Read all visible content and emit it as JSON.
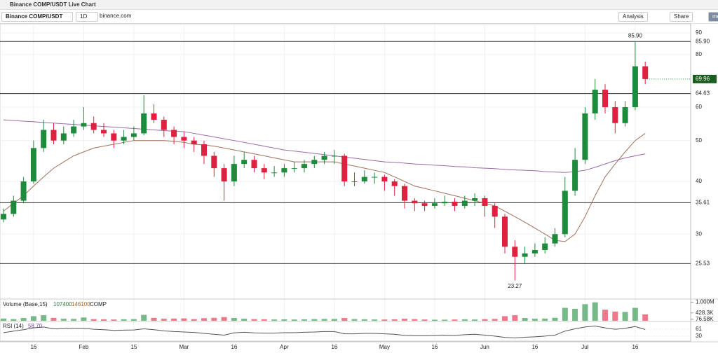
{
  "ui": {
    "tab_title": "Binance COMP/USDT Live Chart",
    "symbol": "Binance COMP/USDT",
    "interval": "1D",
    "source": "binance.com",
    "analysis": "Analysis",
    "share": "Share",
    "user": "me"
  },
  "chart_data": {
    "type": "candlestick",
    "log_scale": true,
    "grid": true,
    "up_color": "#1e8a3c",
    "down_color": "#e0203f",
    "categories": [
      null,
      null,
      null,
      "16",
      null,
      null,
      null,
      null,
      "Feb",
      null,
      null,
      null,
      null,
      "15",
      null,
      null,
      null,
      null,
      "Mar",
      null,
      null,
      null,
      null,
      "16",
      null,
      null,
      null,
      null,
      "Apr",
      null,
      null,
      null,
      null,
      "16",
      null,
      null,
      null,
      null,
      "May",
      null,
      null,
      null,
      null,
      "16",
      null,
      null,
      null,
      null,
      "Jun",
      null,
      null,
      null,
      null,
      "16",
      null,
      null,
      null,
      null,
      "Jul",
      null,
      null,
      null,
      null,
      "16",
      null
    ],
    "candles": [
      [
        32.5,
        34.5,
        32,
        33.5
      ],
      [
        33.5,
        37,
        33,
        36
      ],
      [
        36,
        41,
        35.5,
        40
      ],
      [
        40,
        50,
        39.5,
        48
      ],
      [
        48,
        56,
        47,
        53
      ],
      [
        53,
        55,
        49,
        50
      ],
      [
        50,
        54,
        49,
        52
      ],
      [
        52,
        56,
        51,
        54
      ],
      [
        54,
        60,
        53,
        55
      ],
      [
        55,
        57,
        52,
        53
      ],
      [
        53,
        55,
        51,
        52
      ],
      [
        52,
        53,
        48,
        50
      ],
      [
        50,
        53,
        49,
        51
      ],
      [
        51,
        54,
        50,
        52
      ],
      [
        52,
        64,
        51.5,
        58
      ],
      [
        58,
        61,
        55,
        56
      ],
      [
        56,
        57,
        51,
        53
      ],
      [
        53,
        54,
        49,
        51
      ],
      [
        51,
        52.5,
        48,
        50
      ],
      [
        50,
        51,
        47,
        49
      ],
      [
        49,
        50,
        44,
        46
      ],
      [
        46,
        47,
        41,
        43
      ],
      [
        43,
        44,
        36,
        40
      ],
      [
        40,
        46,
        39,
        44
      ],
      [
        44,
        47,
        43,
        45
      ],
      [
        45,
        46,
        42,
        43
      ],
      [
        43,
        44,
        40.5,
        42
      ],
      [
        42,
        43.5,
        41,
        42
      ],
      [
        42,
        44,
        41,
        43
      ],
      [
        43,
        44.5,
        42,
        43
      ],
      [
        43,
        45,
        42,
        44
      ],
      [
        44,
        46,
        43,
        45
      ],
      [
        45,
        47,
        44,
        46
      ],
      [
        46,
        47.5,
        44,
        46
      ],
      [
        46,
        46.5,
        39,
        40
      ],
      [
        40,
        42,
        39,
        40
      ],
      [
        40,
        42.5,
        39.5,
        41
      ],
      [
        41,
        42,
        39.5,
        41
      ],
      [
        41,
        41.5,
        38,
        40
      ],
      [
        40,
        40.5,
        37,
        39
      ],
      [
        39,
        39.5,
        34.5,
        36
      ],
      [
        36,
        36.5,
        34,
        35.5
      ],
      [
        35.5,
        36,
        34,
        35
      ],
      [
        35,
        36.5,
        34.5,
        35.5
      ],
      [
        35.5,
        37,
        35,
        35.8
      ],
      [
        35.8,
        36.5,
        34,
        35
      ],
      [
        35,
        37,
        34.5,
        36
      ],
      [
        36,
        37.5,
        35,
        36.5
      ],
      [
        36.5,
        37,
        33,
        35
      ],
      [
        35,
        35.5,
        31,
        33
      ],
      [
        33,
        33.5,
        27,
        28
      ],
      [
        28,
        29,
        23.27,
        26.5
      ],
      [
        26.5,
        28,
        25.5,
        27
      ],
      [
        27,
        28.5,
        26.5,
        27.5
      ],
      [
        27.5,
        29.5,
        27,
        28.5
      ],
      [
        28.5,
        31,
        28,
        30
      ],
      [
        30,
        41,
        29.5,
        38
      ],
      [
        38,
        48,
        37,
        45
      ],
      [
        45,
        60,
        44,
        58
      ],
      [
        58,
        70,
        56,
        66
      ],
      [
        66,
        68,
        58,
        60
      ],
      [
        60,
        62,
        52,
        55
      ],
      [
        55,
        62,
        54,
        60
      ],
      [
        60,
        85.9,
        59,
        75
      ],
      [
        75,
        77,
        68,
        69.96
      ]
    ],
    "ma_lines": [
      {
        "color": "#a0705a",
        "values": [
          34,
          35.5,
          37,
          39,
          41,
          43,
          44.5,
          46,
          47,
          48,
          48.5,
          49,
          49.5,
          50,
          50,
          50,
          50,
          49.8,
          49.5,
          49,
          48.8,
          48.5,
          48,
          47.5,
          47,
          46.5,
          46,
          45.5,
          45,
          44.5,
          44.5,
          44.5,
          44.5,
          44.5,
          44,
          43.5,
          43,
          42.5,
          42,
          41,
          40,
          39,
          38.5,
          38,
          37.5,
          37,
          36.5,
          36,
          35.5,
          35,
          34,
          33,
          32,
          31,
          30,
          29,
          28.8,
          30,
          33,
          37,
          41,
          44,
          47,
          50,
          52
        ]
      },
      {
        "color": "#9a6aa8",
        "values": [
          56,
          55.8,
          55.6,
          55.4,
          55.2,
          55,
          54.8,
          54.6,
          54.4,
          54.2,
          54,
          53.8,
          53.6,
          53.4,
          53.2,
          53,
          52.8,
          52.6,
          52.5,
          52,
          51.5,
          51,
          50.5,
          50,
          49.5,
          49,
          48.5,
          48,
          47.5,
          47.2,
          46.9,
          46.6,
          46.3,
          46,
          45.7,
          45.4,
          45.1,
          44.8,
          44.5,
          44.4,
          44.2,
          44,
          43.9,
          43.7,
          43.6,
          43.4,
          43.3,
          43.1,
          43,
          42.9,
          42.7,
          42.6,
          42.5,
          42.4,
          42.2,
          42.1,
          42,
          42.2,
          42.5,
          43.2,
          44,
          44.8,
          45.5,
          46,
          46.5
        ]
      }
    ],
    "levels": [
      {
        "value": 85.9,
        "label": "85.90"
      },
      {
        "value": 64.63,
        "label": "64.63"
      },
      {
        "value": 35.61,
        "label": "35.61"
      },
      {
        "value": 25.53,
        "label": "25.53"
      }
    ],
    "high_annotation": {
      "value": 85.9,
      "label": "85.90"
    },
    "low_annotation": 23.27,
    "last_price": 69.96,
    "ylim": [
      21.2,
      94.6
    ],
    "yticks": [
      90,
      80,
      60,
      50,
      40,
      30
    ],
    "volume_panel": {
      "label": "Volume (Base,15)",
      "ma_values": [
        "107400",
        "146100"
      ],
      "unit": "COMP",
      "ylim": [
        0,
        1100000
      ],
      "yticks": [
        {
          "value": 1000000,
          "label": "1.000M"
        },
        {
          "value": 428300,
          "label": "428.3K"
        },
        {
          "value": 76580,
          "label": "76.58K"
        }
      ],
      "values": [
        120000,
        90000,
        150000,
        250000,
        300000,
        160000,
        110000,
        100000,
        180000,
        90000,
        80000,
        70000,
        80000,
        90000,
        320000,
        160000,
        110000,
        120000,
        130000,
        90000,
        140000,
        160000,
        200000,
        150000,
        110000,
        90000,
        80000,
        70000,
        80000,
        70000,
        80000,
        90000,
        100000,
        100000,
        150000,
        90000,
        80000,
        70000,
        70000,
        80000,
        110000,
        90000,
        70000,
        60000,
        60000,
        70000,
        80000,
        70000,
        90000,
        100000,
        250000,
        300000,
        150000,
        110000,
        120000,
        160000,
        700000,
        650000,
        900000,
        1000000,
        600000,
        500000,
        480000,
        700000,
        350000
      ]
    },
    "rsi_panel": {
      "label": "RSI (14)",
      "current": "58.70",
      "color": "#555555",
      "ylim": [
        8,
        88
      ],
      "yticks": [
        61,
        30
      ],
      "values": [
        45,
        52,
        58,
        66,
        70,
        62,
        63,
        64,
        64,
        60,
        58,
        55,
        56,
        57,
        62,
        58,
        53,
        50,
        48,
        46,
        42,
        38,
        34,
        44,
        47,
        44,
        43,
        43,
        45,
        45,
        47,
        48,
        50,
        50,
        40,
        40,
        42,
        42,
        40,
        38,
        33,
        32,
        32,
        33,
        34,
        33,
        36,
        38,
        34,
        30,
        24,
        22,
        25,
        27,
        30,
        34,
        52,
        62,
        70,
        74,
        66,
        60,
        64,
        72,
        58.7
      ]
    }
  }
}
